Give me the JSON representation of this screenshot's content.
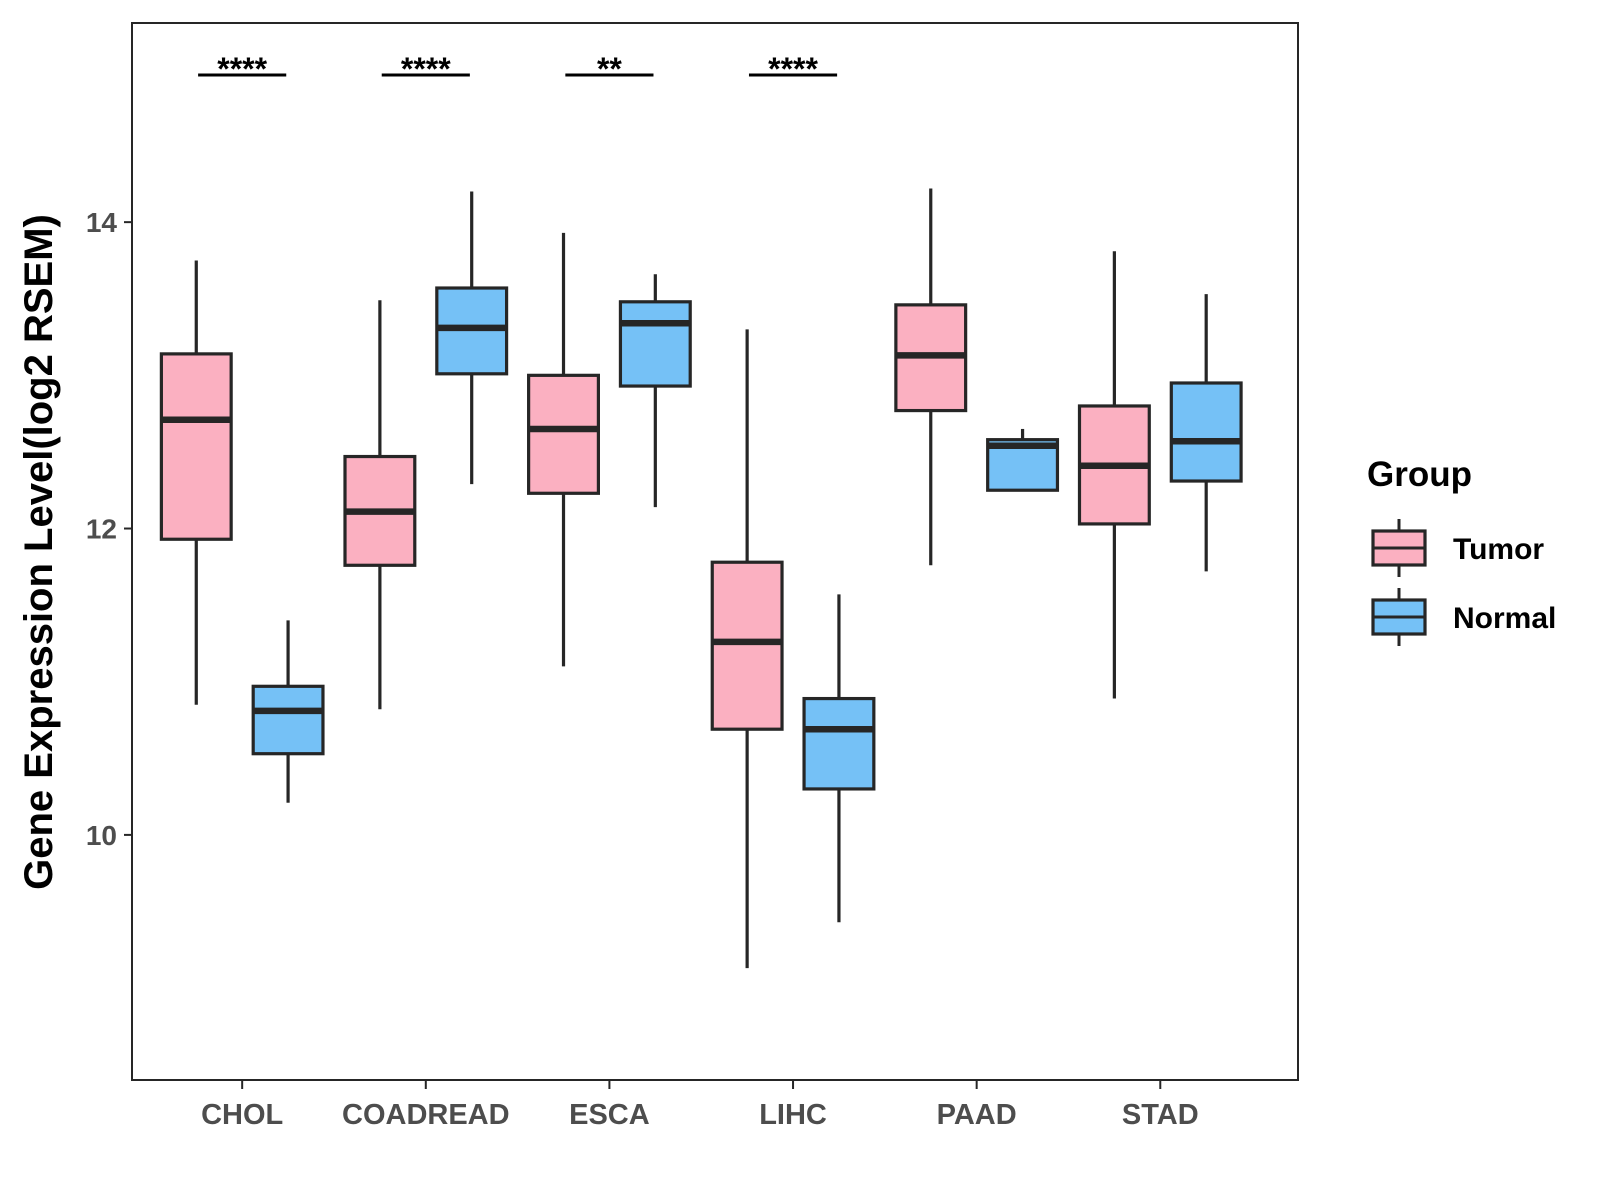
{
  "chart_data": {
    "type": "boxplot",
    "title": "",
    "xlabel": "",
    "ylabel": "Gene Expression Level(log2 RSEM)",
    "ylim": [
      8.4,
      15.3
    ],
    "yticks": [
      10,
      12,
      14
    ],
    "categories": [
      "CHOL",
      "COADREAD",
      "ESCA",
      "LIHC",
      "PAAD",
      "STAD"
    ],
    "series": [
      {
        "name": "Tumor",
        "color": "#FBB0C1",
        "boxes": [
          {
            "min": 10.85,
            "q1": 11.93,
            "median": 12.71,
            "q3": 13.14,
            "max": 13.75
          },
          {
            "min": 10.82,
            "q1": 11.76,
            "median": 12.11,
            "q3": 12.47,
            "max": 13.49
          },
          {
            "min": 11.1,
            "q1": 12.23,
            "median": 12.65,
            "q3": 13.0,
            "max": 13.93
          },
          {
            "min": 9.13,
            "q1": 10.69,
            "median": 11.26,
            "q3": 11.78,
            "max": 13.3
          },
          {
            "min": 11.76,
            "q1": 12.77,
            "median": 13.13,
            "q3": 13.46,
            "max": 14.22
          },
          {
            "min": 10.89,
            "q1": 12.03,
            "median": 12.41,
            "q3": 12.8,
            "max": 13.81
          }
        ]
      },
      {
        "name": "Normal",
        "color": "#75C1F6",
        "boxes": [
          {
            "min": 10.21,
            "q1": 10.53,
            "median": 10.81,
            "q3": 10.97,
            "max": 11.4
          },
          {
            "min": 12.29,
            "q1": 13.01,
            "median": 13.31,
            "q3": 13.57,
            "max": 14.2
          },
          {
            "min": 12.14,
            "q1": 12.93,
            "median": 13.34,
            "q3": 13.48,
            "max": 13.66
          },
          {
            "min": 9.43,
            "q1": 10.3,
            "median": 10.69,
            "q3": 10.89,
            "max": 11.57
          },
          {
            "min": 12.25,
            "q1": 12.25,
            "median": 12.54,
            "q3": 12.58,
            "max": 12.65
          },
          {
            "min": 11.72,
            "q1": 12.31,
            "median": 12.57,
            "q3": 12.95,
            "max": 13.53
          }
        ]
      }
    ],
    "significance": [
      {
        "category": "CHOL",
        "label": "****"
      },
      {
        "category": "COADREAD",
        "label": "****"
      },
      {
        "category": "ESCA",
        "label": "**"
      },
      {
        "category": "LIHC",
        "label": "****"
      },
      {
        "category": "PAAD",
        "label": ""
      },
      {
        "category": "STAD",
        "label": ""
      }
    ],
    "legend": {
      "title": "Group",
      "position": "right",
      "entries": [
        "Tumor",
        "Normal"
      ]
    },
    "colors": {
      "tumor": "#FBB0C1",
      "normal": "#75C1F6",
      "outline": "#262626",
      "axis": "#262626",
      "tick_label": "#4d4d4d"
    }
  }
}
